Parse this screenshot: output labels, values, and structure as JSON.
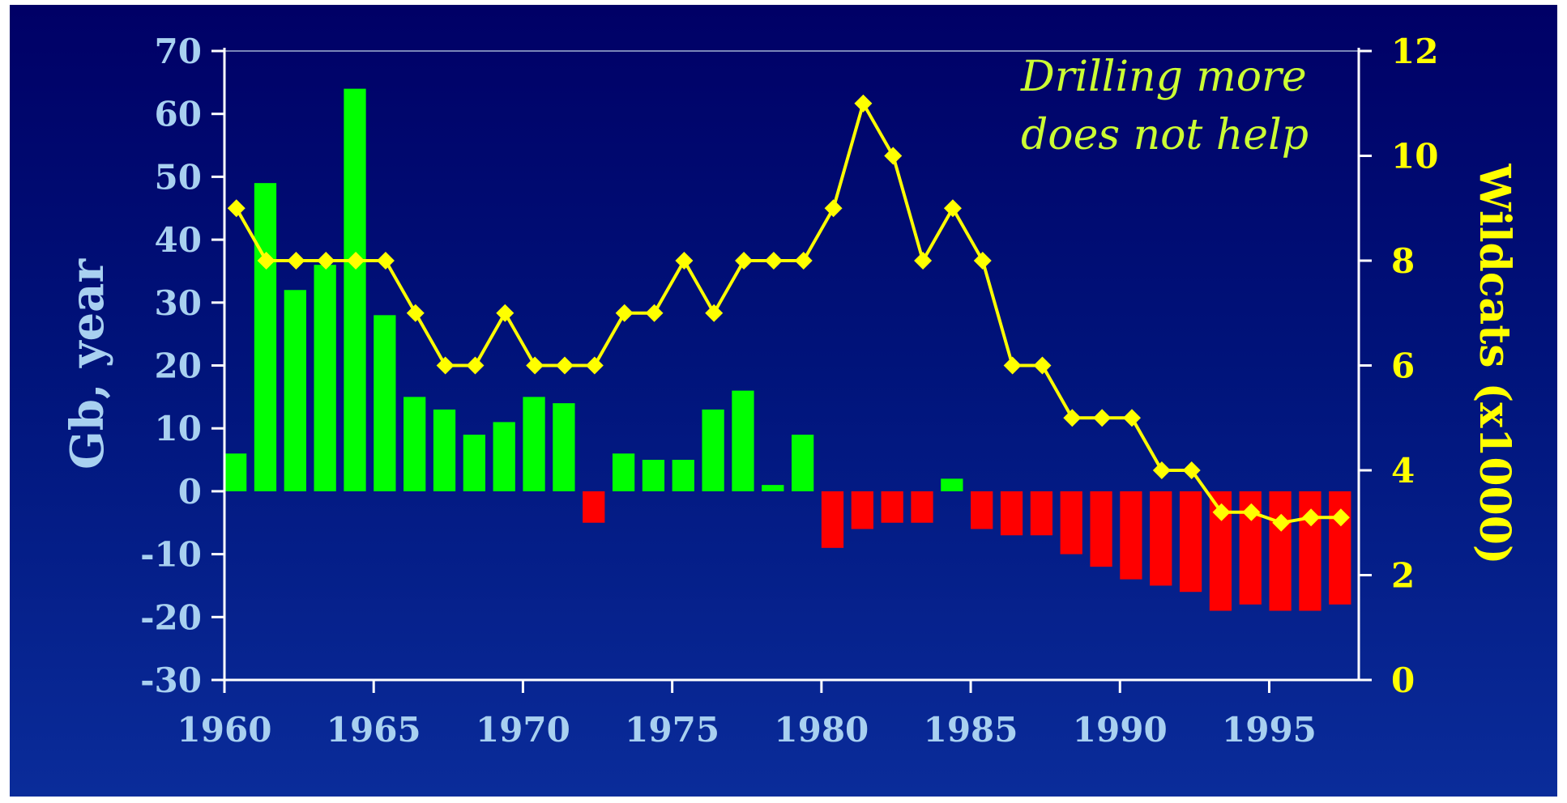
{
  "chart_data": {
    "type": "bar",
    "title": "",
    "annotation_lines": [
      "Drilling more",
      "does not help"
    ],
    "y_left": {
      "label": "Gb, year",
      "range": [
        -30,
        70
      ],
      "ticks": [
        "70",
        "60",
        "50",
        "40",
        "30",
        "20",
        "10",
        "0",
        "-10",
        "-20",
        "-30"
      ]
    },
    "y_right": {
      "label": "Wildcats (x1000)",
      "range": [
        0,
        12
      ],
      "ticks": [
        "12",
        "10",
        "8",
        "6",
        "4",
        "2",
        "0"
      ]
    },
    "x": {
      "range": [
        1960,
        1998
      ],
      "ticks": [
        "1960",
        "1965",
        "1970",
        "1975",
        "1980",
        "1985",
        "1990",
        "1995"
      ]
    },
    "colors": {
      "positive_bar": "#00ff00",
      "negative_bar": "#ff0000",
      "line": "#ffff00",
      "left_axis": "#a8d0f0",
      "right_axis": "#ffff00",
      "axis_line": "#ffffff"
    },
    "series": [
      {
        "kind": "bar",
        "axis": "left",
        "x": [
          1960,
          1961,
          1962,
          1963,
          1964,
          1965,
          1966,
          1967,
          1968,
          1969,
          1970,
          1971,
          1972,
          1973,
          1974,
          1975,
          1976,
          1977,
          1978,
          1979,
          1980,
          1981,
          1982,
          1983,
          1984,
          1985,
          1986,
          1987,
          1988,
          1989,
          1990,
          1991,
          1992,
          1993,
          1994,
          1995,
          1996,
          1997
        ],
        "values": [
          6,
          49,
          32,
          36,
          64,
          28,
          15,
          13,
          9,
          11,
          15,
          14,
          -5,
          6,
          5,
          5,
          13,
          16,
          1,
          9,
          -9,
          -6,
          -5,
          -5,
          2,
          -6,
          -7,
          -7,
          -10,
          -12,
          -14,
          -15,
          -16,
          -19,
          -18,
          -19,
          -19,
          -18
        ]
      },
      {
        "kind": "line",
        "axis": "right",
        "x": [
          1960.4,
          1961.4,
          1962.4,
          1963.4,
          1964.4,
          1965.4,
          1966.4,
          1967.4,
          1968.4,
          1969.4,
          1970.4,
          1971.4,
          1972.4,
          1973.4,
          1974.4,
          1975.4,
          1976.4,
          1977.4,
          1978.4,
          1979.4,
          1980.4,
          1981.4,
          1982.4,
          1983.4,
          1984.4,
          1985.4,
          1986.4,
          1987.4,
          1988.4,
          1989.4,
          1990.4,
          1991.4,
          1992.4,
          1993.4,
          1994.4,
          1995.4,
          1996.4,
          1997.4
        ],
        "values": [
          9,
          8,
          8,
          8,
          8,
          8,
          7,
          6,
          6,
          7,
          6,
          6,
          6,
          7,
          7,
          8,
          7,
          8,
          8,
          8,
          9,
          11,
          10,
          8,
          9,
          8,
          6,
          6,
          5,
          5,
          5,
          4,
          4,
          3.2,
          3.2,
          3.0,
          3.1,
          3.1
        ]
      }
    ]
  }
}
